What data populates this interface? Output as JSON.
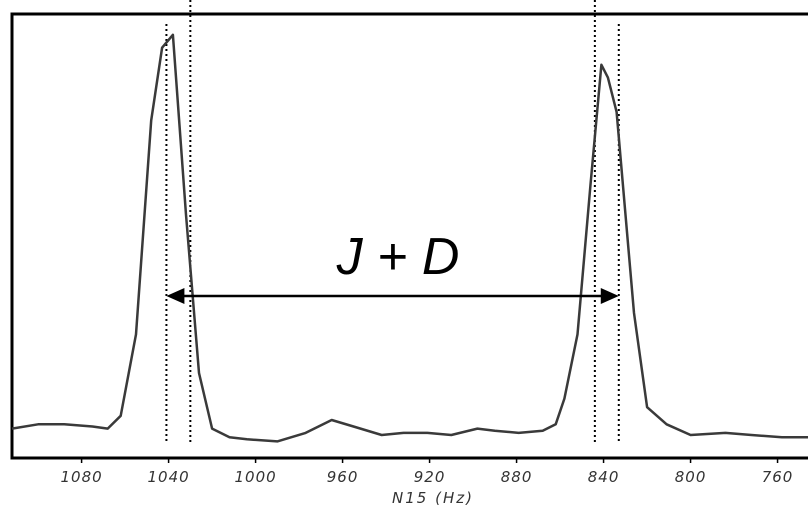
{
  "chart_data": {
    "type": "line",
    "xlabel": "N15 (Hz)",
    "ylabel": "",
    "title": "",
    "x_reversed": true,
    "xlim": [
      1112,
      746
    ],
    "ylim": [
      0,
      100
    ],
    "x_ticks": [
      1080,
      1040,
      1000,
      960,
      920,
      880,
      840,
      800,
      760
    ],
    "x_tick_labels": [
      "1080",
      "1040",
      "1000",
      "960",
      "920",
      "880",
      "840",
      "800",
      "760"
    ],
    "grid": false,
    "series": [
      {
        "x": [
          1112,
          1100,
          1088,
          1075,
          1068,
          1062,
          1055,
          1048,
          1043,
          1038,
          1032,
          1026,
          1020,
          1012,
          1004,
          990,
          977,
          965,
          955,
          942,
          932,
          921,
          910,
          898,
          890,
          879,
          868,
          862,
          858,
          852,
          846,
          841,
          838,
          834,
          826,
          820,
          811,
          800,
          784,
          772,
          758,
          746
        ],
        "y": [
          5,
          6,
          6,
          5.5,
          5,
          8,
          27,
          77,
          94,
          97,
          55,
          18,
          5,
          3,
          2.5,
          2,
          4,
          7,
          5.5,
          3.5,
          4,
          4,
          3.5,
          5,
          4.5,
          4,
          4.5,
          6,
          12,
          27,
          62,
          90,
          87,
          79,
          32,
          10,
          6,
          3.5,
          4,
          3.5,
          3,
          3
        ]
      }
    ],
    "reference_lines_x": [
      1041,
      1030,
      844,
      833
    ],
    "annotation": {
      "text": "J + D",
      "arrow_from_x": 1041,
      "arrow_to_x": 833
    }
  }
}
